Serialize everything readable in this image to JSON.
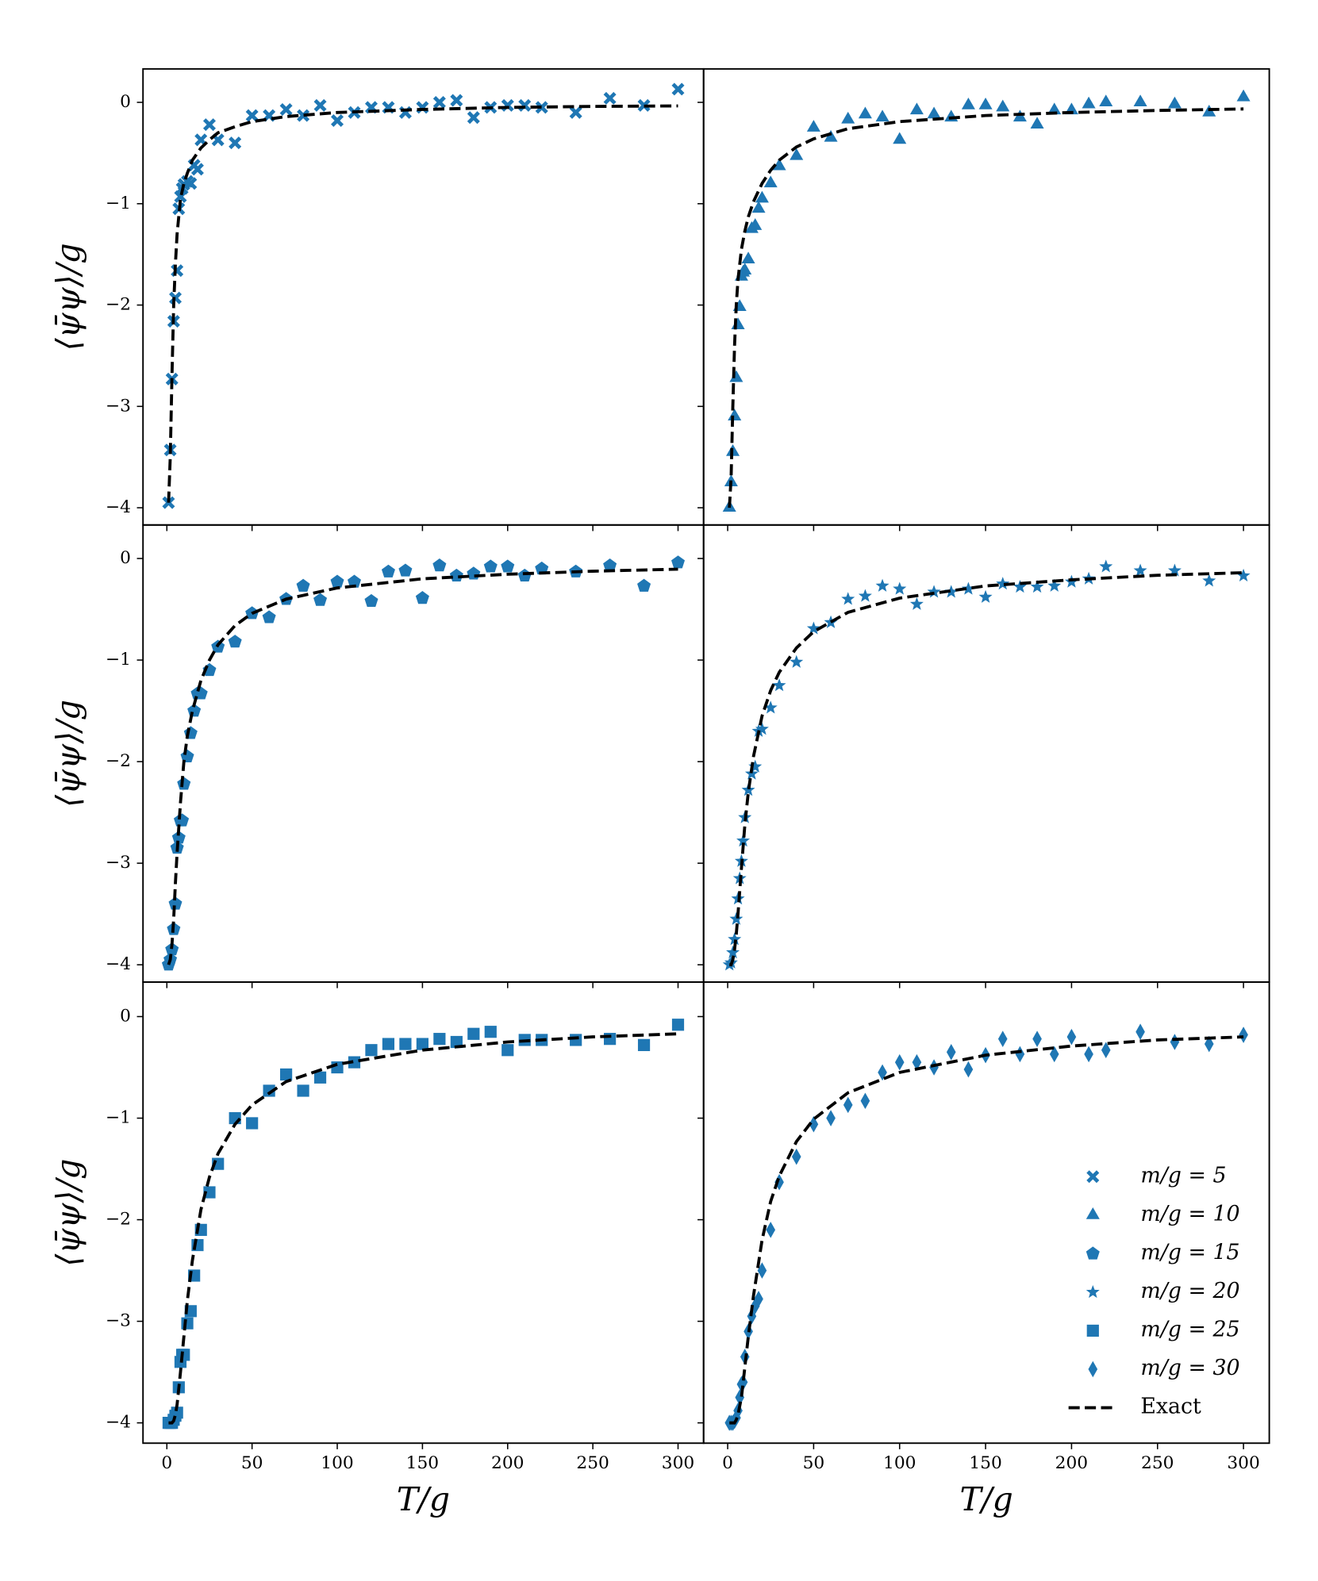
{
  "chart_data": [
    {
      "type": "scatter",
      "ylabel": "⟨ψ̄ψ⟩/g",
      "xlim": [
        -14,
        315
      ],
      "ylim": [
        -4.17,
        0.33
      ],
      "xticks": [
        0,
        50,
        100,
        150,
        200,
        250,
        300
      ],
      "yticks": [
        {
          "value": 0,
          "label": "0"
        },
        {
          "value": -1,
          "label": "−1"
        },
        {
          "value": -2,
          "label": "−2"
        },
        {
          "value": -3,
          "label": "−3"
        },
        {
          "value": -4,
          "label": "−4"
        }
      ],
      "series": [
        {
          "name": "m/g = 5",
          "color": "#1f77b4",
          "marker": "X",
          "x": [
            1,
            2,
            3,
            4,
            5,
            6,
            7,
            8,
            9,
            10,
            12,
            14,
            16,
            18,
            20,
            25,
            30,
            40,
            50,
            60,
            70,
            80,
            90,
            100,
            110,
            120,
            130,
            140,
            150,
            160,
            170,
            180,
            190,
            200,
            210,
            220,
            240,
            260,
            280,
            300
          ],
          "values": [
            -3.95,
            -3.43,
            -2.73,
            -2.16,
            -1.93,
            -1.66,
            -1.05,
            -0.93,
            -0.85,
            -0.81,
            -0.78,
            -0.8,
            -0.62,
            -0.66,
            -0.37,
            -0.22,
            -0.37,
            -0.4,
            -0.13,
            -0.13,
            -0.07,
            -0.13,
            -0.03,
            -0.18,
            -0.1,
            -0.05,
            -0.05,
            -0.1,
            -0.05,
            0.0,
            0.02,
            -0.15,
            -0.05,
            -0.03,
            -0.03,
            -0.05,
            -0.1,
            0.04,
            -0.03,
            0.13
          ]
        },
        {
          "name": "Exact",
          "color": "#000000",
          "linestyle": "dashed",
          "x": [
            1,
            2,
            3,
            4,
            5,
            6,
            8,
            10,
            12,
            15,
            20,
            25,
            30,
            40,
            50,
            70,
            100,
            150,
            200,
            250,
            300
          ],
          "values": [
            -3.95,
            -3.5,
            -2.7,
            -2.0,
            -1.6,
            -1.3,
            -0.95,
            -0.8,
            -0.7,
            -0.57,
            -0.45,
            -0.37,
            -0.3,
            -0.24,
            -0.19,
            -0.14,
            -0.1,
            -0.07,
            -0.05,
            -0.04,
            -0.035
          ]
        }
      ]
    },
    {
      "type": "scatter",
      "xlim": [
        -14,
        315
      ],
      "ylim": [
        -4.17,
        0.33
      ],
      "xticks": [
        0,
        50,
        100,
        150,
        200,
        250,
        300
      ],
      "yticks": [
        0,
        -1,
        -2,
        -3,
        -4
      ],
      "series": [
        {
          "name": "m/g = 10",
          "color": "#1f77b4",
          "marker": "^",
          "x": [
            1,
            2,
            3,
            4,
            5,
            6,
            7,
            8,
            9,
            10,
            12,
            14,
            16,
            18,
            20,
            25,
            30,
            40,
            50,
            60,
            70,
            80,
            90,
            100,
            110,
            120,
            130,
            140,
            150,
            160,
            170,
            180,
            190,
            200,
            210,
            220,
            240,
            260,
            280,
            300
          ],
          "values": [
            -4.0,
            -3.75,
            -3.45,
            -3.1,
            -2.72,
            -2.2,
            -2.02,
            -1.72,
            -1.68,
            -1.66,
            -1.55,
            -1.25,
            -1.22,
            -1.05,
            -0.95,
            -0.8,
            -0.63,
            -0.53,
            -0.25,
            -0.35,
            -0.17,
            -0.12,
            -0.15,
            -0.37,
            -0.08,
            -0.12,
            -0.15,
            -0.03,
            -0.03,
            -0.05,
            -0.15,
            -0.22,
            -0.08,
            -0.08,
            -0.02,
            0.0,
            0.0,
            -0.02,
            -0.1,
            0.05
          ]
        },
        {
          "name": "Exact",
          "color": "#000000",
          "linestyle": "dashed",
          "x": [
            1,
            2,
            3,
            4,
            5,
            6,
            8,
            10,
            12,
            15,
            20,
            25,
            30,
            40,
            50,
            70,
            100,
            150,
            200,
            250,
            300
          ],
          "values": [
            -4.0,
            -3.7,
            -3.0,
            -2.4,
            -2.0,
            -1.75,
            -1.45,
            -1.27,
            -1.13,
            -0.98,
            -0.8,
            -0.67,
            -0.57,
            -0.44,
            -0.36,
            -0.26,
            -0.19,
            -0.13,
            -0.1,
            -0.08,
            -0.065
          ]
        }
      ]
    },
    {
      "type": "scatter",
      "ylabel": "⟨ψ̄ψ⟩/g",
      "xlim": [
        -14,
        315
      ],
      "ylim": [
        -4.17,
        0.33
      ],
      "xticks": [
        0,
        50,
        100,
        150,
        200,
        250,
        300
      ],
      "yticks": [
        {
          "value": 0,
          "label": "0"
        },
        {
          "value": -1,
          "label": "−1"
        },
        {
          "value": -2,
          "label": "−2"
        },
        {
          "value": -3,
          "label": "−3"
        },
        {
          "value": -4,
          "label": "−4"
        }
      ],
      "series": [
        {
          "name": "m/g = 15",
          "color": "#1f77b4",
          "marker": "p",
          "x": [
            1,
            2,
            3,
            4,
            5,
            6,
            7,
            8,
            9,
            10,
            12,
            14,
            16,
            18,
            20,
            25,
            30,
            40,
            50,
            60,
            70,
            80,
            90,
            100,
            110,
            120,
            130,
            140,
            150,
            160,
            170,
            180,
            190,
            200,
            210,
            220,
            240,
            260,
            280,
            300
          ],
          "values": [
            -4.0,
            -3.95,
            -3.85,
            -3.65,
            -3.4,
            -2.85,
            -2.75,
            -2.58,
            -2.58,
            -2.22,
            -1.95,
            -1.72,
            -1.5,
            -1.33,
            -1.33,
            -1.1,
            -0.87,
            -0.82,
            -0.54,
            -0.58,
            -0.4,
            -0.27,
            -0.41,
            -0.23,
            -0.23,
            -0.42,
            -0.13,
            -0.12,
            -0.39,
            -0.07,
            -0.17,
            -0.15,
            -0.08,
            -0.08,
            -0.17,
            -0.1,
            -0.13,
            -0.07,
            -0.27,
            -0.04
          ]
        },
        {
          "name": "Exact",
          "color": "#000000",
          "linestyle": "dashed",
          "x": [
            1,
            2,
            3,
            4,
            5,
            6,
            8,
            10,
            12,
            15,
            20,
            25,
            30,
            40,
            50,
            70,
            100,
            150,
            200,
            250,
            300
          ],
          "values": [
            -4.0,
            -3.95,
            -3.8,
            -3.55,
            -3.2,
            -2.9,
            -2.4,
            -2.0,
            -1.75,
            -1.5,
            -1.2,
            -1.0,
            -0.85,
            -0.66,
            -0.54,
            -0.4,
            -0.29,
            -0.2,
            -0.155,
            -0.125,
            -0.105
          ]
        }
      ]
    },
    {
      "type": "scatter",
      "xlim": [
        -14,
        315
      ],
      "ylim": [
        -4.17,
        0.33
      ],
      "xticks": [
        0,
        50,
        100,
        150,
        200,
        250,
        300
      ],
      "yticks": [
        0,
        -1,
        -2,
        -3,
        -4
      ],
      "series": [
        {
          "name": "m/g = 20",
          "color": "#1f77b4",
          "marker": "*",
          "x": [
            1,
            2,
            3,
            4,
            5,
            6,
            7,
            8,
            9,
            10,
            12,
            14,
            16,
            18,
            20,
            25,
            30,
            40,
            50,
            60,
            70,
            80,
            90,
            100,
            110,
            120,
            130,
            140,
            150,
            160,
            170,
            180,
            190,
            200,
            210,
            220,
            240,
            260,
            280,
            300
          ],
          "values": [
            -4.0,
            -3.98,
            -3.88,
            -3.75,
            -3.55,
            -3.35,
            -3.15,
            -2.98,
            -2.78,
            -2.55,
            -2.28,
            -2.12,
            -2.05,
            -1.7,
            -1.68,
            -1.47,
            -1.25,
            -1.02,
            -0.69,
            -0.63,
            -0.4,
            -0.37,
            -0.27,
            -0.3,
            -0.45,
            -0.33,
            -0.33,
            -0.3,
            -0.38,
            -0.25,
            -0.28,
            -0.28,
            -0.27,
            -0.23,
            -0.2,
            -0.08,
            -0.12,
            -0.12,
            -0.22,
            -0.17
          ]
        },
        {
          "name": "Exact",
          "color": "#000000",
          "linestyle": "dashed",
          "x": [
            1,
            2,
            3,
            4,
            5,
            6,
            8,
            10,
            12,
            15,
            20,
            25,
            30,
            40,
            50,
            70,
            100,
            150,
            200,
            250,
            300
          ],
          "values": [
            -4.0,
            -4.0,
            -3.95,
            -3.85,
            -3.7,
            -3.5,
            -3.05,
            -2.62,
            -2.3,
            -1.95,
            -1.55,
            -1.3,
            -1.12,
            -0.88,
            -0.72,
            -0.53,
            -0.39,
            -0.27,
            -0.21,
            -0.165,
            -0.14
          ]
        }
      ]
    },
    {
      "type": "scatter",
      "ylabel": "⟨ψ̄ψ⟩/g",
      "xlabel": "T/g",
      "xlim": [
        -14,
        315
      ],
      "ylim": [
        -4.2,
        0.34
      ],
      "xticks": [
        0,
        50,
        100,
        150,
        200,
        250,
        300
      ],
      "yticks": [
        {
          "value": 0,
          "label": "0"
        },
        {
          "value": -1,
          "label": "−1"
        },
        {
          "value": -2,
          "label": "−2"
        },
        {
          "value": -3,
          "label": "−3"
        },
        {
          "value": -4,
          "label": "−4"
        }
      ],
      "series": [
        {
          "name": "m/g = 25",
          "color": "#1f77b4",
          "marker": "s",
          "x": [
            1,
            2,
            3,
            4,
            5,
            6,
            7,
            8,
            9,
            10,
            12,
            14,
            16,
            18,
            20,
            25,
            30,
            40,
            50,
            60,
            70,
            80,
            90,
            100,
            110,
            120,
            130,
            140,
            150,
            160,
            170,
            180,
            190,
            200,
            210,
            220,
            240,
            260,
            280,
            300
          ],
          "values": [
            -4.0,
            -4.0,
            -4.0,
            -3.97,
            -3.93,
            -3.9,
            -3.65,
            -3.4,
            -3.33,
            -3.33,
            -3.02,
            -2.9,
            -2.55,
            -2.25,
            -2.1,
            -1.73,
            -1.45,
            -1.0,
            -1.05,
            -0.73,
            -0.57,
            -0.73,
            -0.6,
            -0.5,
            -0.45,
            -0.33,
            -0.27,
            -0.27,
            -0.27,
            -0.22,
            -0.25,
            -0.17,
            -0.15,
            -0.33,
            -0.23,
            -0.23,
            -0.23,
            -0.22,
            -0.28,
            -0.08
          ]
        },
        {
          "name": "Exact",
          "color": "#000000",
          "linestyle": "dashed",
          "x": [
            1,
            2,
            3,
            4,
            5,
            6,
            8,
            10,
            12,
            15,
            20,
            25,
            30,
            40,
            50,
            70,
            100,
            150,
            200,
            250,
            300
          ],
          "values": [
            -4.0,
            -4.0,
            -4.0,
            -3.98,
            -3.92,
            -3.82,
            -3.5,
            -3.15,
            -2.8,
            -2.4,
            -1.9,
            -1.58,
            -1.35,
            -1.06,
            -0.87,
            -0.64,
            -0.47,
            -0.33,
            -0.25,
            -0.2,
            -0.17
          ]
        }
      ]
    },
    {
      "type": "scatter",
      "xlabel": "T/g",
      "legend": "lower right",
      "xlim": [
        -14,
        315
      ],
      "ylim": [
        -4.2,
        0.34
      ],
      "xticks": [
        0,
        50,
        100,
        150,
        200,
        250,
        300
      ],
      "yticks": [
        0,
        -1,
        -2,
        -3,
        -4
      ],
      "series": [
        {
          "name": "m/g = 30",
          "color": "#1f77b4",
          "marker": "d",
          "x": [
            1,
            2,
            3,
            4,
            5,
            6,
            7,
            8,
            9,
            10,
            12,
            14,
            16,
            18,
            20,
            25,
            30,
            40,
            50,
            60,
            70,
            80,
            90,
            100,
            110,
            120,
            130,
            140,
            150,
            160,
            170,
            180,
            190,
            200,
            210,
            220,
            240,
            260,
            280,
            300
          ],
          "values": [
            -4.0,
            -4.0,
            -4.0,
            -3.98,
            -3.95,
            -3.88,
            -3.75,
            -3.62,
            -3.6,
            -3.35,
            -3.1,
            -2.95,
            -2.85,
            -2.78,
            -2.5,
            -2.1,
            -1.63,
            -1.38,
            -1.06,
            -1.0,
            -0.87,
            -0.83,
            -0.55,
            -0.45,
            -0.45,
            -0.5,
            -0.35,
            -0.52,
            -0.38,
            -0.22,
            -0.37,
            -0.22,
            -0.37,
            -0.2,
            -0.37,
            -0.33,
            -0.15,
            -0.25,
            -0.27,
            -0.18
          ]
        },
        {
          "name": "Exact",
          "color": "#000000",
          "linestyle": "dashed",
          "x": [
            1,
            2,
            3,
            4,
            5,
            6,
            8,
            10,
            12,
            15,
            20,
            25,
            30,
            40,
            50,
            70,
            100,
            150,
            200,
            250,
            300
          ],
          "values": [
            -4.0,
            -4.0,
            -4.0,
            -4.0,
            -3.97,
            -3.92,
            -3.75,
            -3.45,
            -3.15,
            -2.75,
            -2.2,
            -1.82,
            -1.57,
            -1.23,
            -1.01,
            -0.75,
            -0.55,
            -0.38,
            -0.29,
            -0.23,
            -0.2
          ]
        }
      ]
    }
  ]
}
